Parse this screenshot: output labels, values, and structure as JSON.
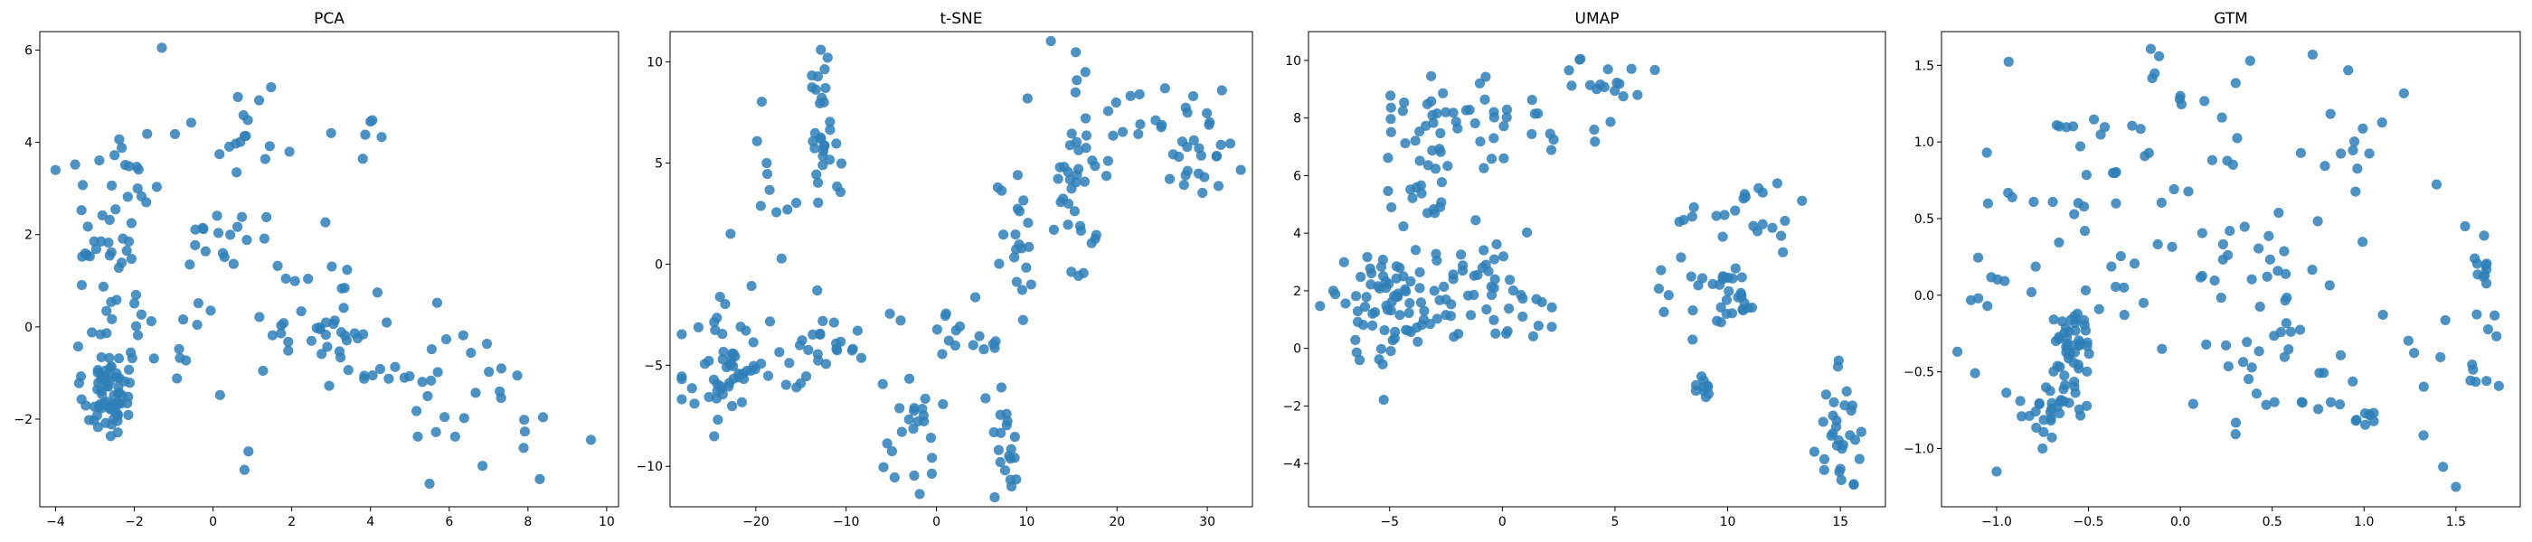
{
  "chart_data": [
    {
      "type": "scatter",
      "title": "PCA",
      "xlabel": "",
      "ylabel": "",
      "xlim": [
        -4.4,
        10.3
      ],
      "ylim": [
        -3.9,
        6.4
      ],
      "xticks": [
        -4,
        -2,
        0,
        2,
        4,
        6,
        8,
        10
      ],
      "yticks": [
        -2,
        0,
        2,
        4,
        6
      ],
      "xtick_labels": [
        "−4",
        "−2",
        "0",
        "2",
        "4",
        "6",
        "8",
        "10"
      ],
      "ytick_labels": [
        "−2",
        "0",
        "2",
        "4",
        "6"
      ],
      "grid": false,
      "color": "#2f7fb8",
      "clusters": [
        {
          "cx": -2.7,
          "cy": -1.4,
          "sx": 0.3,
          "sy": 0.5,
          "n": 70
        },
        {
          "cx": -2.6,
          "cy": 1.5,
          "sx": 0.6,
          "sy": 1.2,
          "n": 40
        },
        {
          "cx": -2.2,
          "cy": 3.4,
          "sx": 0.6,
          "sy": 0.5,
          "n": 15
        },
        {
          "cx": 0.9,
          "cy": 4.5,
          "sx": 0.6,
          "sy": 0.6,
          "n": 15
        },
        {
          "cx": 0.6,
          "cy": 1.8,
          "sx": 0.7,
          "sy": 0.6,
          "n": 20
        },
        {
          "cx": 2.2,
          "cy": 0.6,
          "sx": 0.8,
          "sy": 0.6,
          "n": 20
        },
        {
          "cx": 3.4,
          "cy": -0.3,
          "sx": 0.6,
          "sy": 0.8,
          "n": 25
        },
        {
          "cx": 5.8,
          "cy": -1.1,
          "sx": 0.8,
          "sy": 0.6,
          "n": 15
        },
        {
          "cx": 7.4,
          "cy": -1.9,
          "sx": 0.9,
          "sy": 0.7,
          "n": 15
        },
        {
          "cx": -0.7,
          "cy": -0.7,
          "sx": 0.6,
          "sy": 0.7,
          "n": 10
        },
        {
          "cx": 4.1,
          "cy": 4.1,
          "sx": 0.2,
          "sy": 0.2,
          "n": 4
        }
      ],
      "points": [
        [
          -1.3,
          6.05
        ],
        [
          -4.0,
          3.4
        ],
        [
          8.3,
          -3.3
        ],
        [
          9.6,
          -2.45
        ],
        [
          5.5,
          -3.4
        ],
        [
          0.8,
          -3.1
        ],
        [
          0.9,
          -2.7
        ],
        [
          4.0,
          4.45
        ],
        [
          3.0,
          4.2
        ]
      ]
    },
    {
      "type": "scatter",
      "title": "t-SNE",
      "xlabel": "",
      "ylabel": "",
      "xlim": [
        -29.5,
        35.0
      ],
      "ylim": [
        -12.0,
        11.5
      ],
      "xticks": [
        -20,
        -10,
        0,
        10,
        20,
        30
      ],
      "yticks": [
        -10,
        -5,
        0,
        5,
        10
      ],
      "xtick_labels": [
        "−20",
        "−10",
        "0",
        "10",
        "20",
        "30"
      ],
      "ytick_labels": [
        "−10",
        "−5",
        "0",
        "5",
        "10"
      ],
      "grid": false,
      "color": "#2f7fb8",
      "clusters": [
        {
          "cx": -12.5,
          "cy": 7.0,
          "sx": 0.9,
          "sy": 2.0,
          "n": 30
        },
        {
          "cx": -23.0,
          "cy": -5.0,
          "sx": 2.2,
          "sy": 2.0,
          "n": 55
        },
        {
          "cx": -13.0,
          "cy": -4.5,
          "sx": 3.5,
          "sy": 0.9,
          "n": 25
        },
        {
          "cx": -3.0,
          "cy": -7.5,
          "sx": 2.0,
          "sy": 1.8,
          "n": 25
        },
        {
          "cx": 4.0,
          "cy": -3.0,
          "sx": 2.5,
          "sy": 1.2,
          "n": 15
        },
        {
          "cx": 8.0,
          "cy": -9.0,
          "sx": 1.0,
          "sy": 1.5,
          "n": 20
        },
        {
          "cx": 9.0,
          "cy": 0.0,
          "sx": 1.2,
          "sy": 2.0,
          "n": 20
        },
        {
          "cx": 15.5,
          "cy": 5.0,
          "sx": 2.0,
          "sy": 3.0,
          "n": 40
        },
        {
          "cx": 29.0,
          "cy": 6.0,
          "sx": 2.0,
          "sy": 1.5,
          "n": 30
        },
        {
          "cx": 21.0,
          "cy": 7.0,
          "sx": 1.5,
          "sy": 1.0,
          "n": 8
        },
        {
          "cx": -18.0,
          "cy": 3.5,
          "sx": 2.0,
          "sy": 1.5,
          "n": 8
        }
      ],
      "points": [
        [
          -12.8,
          10.6
        ],
        [
          -16.5,
          2.7
        ],
        [
          -18.8,
          5.0
        ],
        [
          -13.2,
          -1.3
        ],
        [
          22.5,
          8.4
        ],
        [
          16.5,
          9.5
        ],
        [
          -22.8,
          1.5
        ]
      ]
    },
    {
      "type": "scatter",
      "title": "UMAP",
      "xlabel": "",
      "ylabel": "",
      "xlim": [
        -8.6,
        17.0
      ],
      "ylim": [
        -5.5,
        11.0
      ],
      "xticks": [
        -5,
        0,
        5,
        10,
        15
      ],
      "yticks": [
        -4,
        -2,
        0,
        2,
        4,
        6,
        8,
        10
      ],
      "xtick_labels": [
        "−5",
        "0",
        "5",
        "10",
        "15"
      ],
      "ytick_labels": [
        "−4",
        "−2",
        "0",
        "2",
        "4",
        "6",
        "8",
        "10"
      ],
      "grid": false,
      "color": "#2f7fb8",
      "clusters": [
        {
          "cx": -5.0,
          "cy": 1.5,
          "sx": 1.3,
          "sy": 1.0,
          "n": 70
        },
        {
          "cx": -1.0,
          "cy": 2.0,
          "sx": 1.5,
          "sy": 0.8,
          "n": 50
        },
        {
          "cx": -3.5,
          "cy": 6.0,
          "sx": 1.0,
          "sy": 1.3,
          "n": 30
        },
        {
          "cx": -2.5,
          "cy": 8.5,
          "sx": 1.5,
          "sy": 0.6,
          "n": 20
        },
        {
          "cx": 1.5,
          "cy": 7.5,
          "sx": 1.5,
          "sy": 0.5,
          "n": 20
        },
        {
          "cx": 4.5,
          "cy": 9.5,
          "sx": 0.8,
          "sy": 0.6,
          "n": 15
        },
        {
          "cx": 9.0,
          "cy": 2.5,
          "sx": 1.0,
          "sy": 1.2,
          "n": 25
        },
        {
          "cx": 10.5,
          "cy": 2.0,
          "sx": 0.5,
          "sy": 0.6,
          "n": 15
        },
        {
          "cx": 11.5,
          "cy": 4.5,
          "sx": 0.8,
          "sy": 0.6,
          "n": 15
        },
        {
          "cx": 9.0,
          "cy": -1.2,
          "sx": 0.3,
          "sy": 0.3,
          "n": 10
        },
        {
          "cx": 15.0,
          "cy": -3.0,
          "sx": 0.5,
          "sy": 1.0,
          "n": 30
        }
      ],
      "points": [
        [
          -7.5,
          2.0
        ],
        [
          -3.0,
          4.7
        ],
        [
          8.5,
          4.9
        ],
        [
          9.5,
          4.6
        ],
        [
          6.0,
          8.8
        ]
      ]
    },
    {
      "type": "scatter",
      "title": "GTM",
      "xlabel": "",
      "ylabel": "",
      "xlim": [
        -1.3,
        1.85
      ],
      "ylim": [
        -1.38,
        1.72
      ],
      "xticks": [
        -1.0,
        -0.5,
        0.0,
        0.5,
        1.0,
        1.5
      ],
      "yticks": [
        -1.0,
        -0.5,
        0.0,
        0.5,
        1.0,
        1.5
      ],
      "xtick_labels": [
        "−1.0",
        "−0.5",
        "0.0",
        "0.5",
        "1.0",
        "1.5"
      ],
      "ytick_labels": [
        "−1.0",
        "−0.5",
        "0.0",
        "0.5",
        "1.0",
        "1.5"
      ],
      "grid": false,
      "color": "#2f7fb8",
      "clusters": [
        {
          "cx": -0.6,
          "cy": -0.35,
          "sx": 0.06,
          "sy": 0.15,
          "n": 45
        },
        {
          "cx": -0.7,
          "cy": -0.75,
          "sx": 0.12,
          "sy": 0.1,
          "n": 25
        },
        {
          "cx": -0.55,
          "cy": 0.3,
          "sx": 0.3,
          "sy": 0.5,
          "n": 40
        },
        {
          "cx": -0.3,
          "cy": 1.0,
          "sx": 0.4,
          "sy": 0.35,
          "n": 25
        },
        {
          "cx": 0.3,
          "cy": 0.3,
          "sx": 0.3,
          "sy": 0.35,
          "n": 20
        },
        {
          "cx": 0.7,
          "cy": 0.0,
          "sx": 0.35,
          "sy": 0.4,
          "n": 35
        },
        {
          "cx": 0.5,
          "cy": -0.6,
          "sx": 0.3,
          "sy": 0.25,
          "n": 20
        },
        {
          "cx": 1.0,
          "cy": -0.8,
          "sx": 0.05,
          "sy": 0.03,
          "n": 8
        },
        {
          "cx": 1.65,
          "cy": 0.0,
          "sx": 0.05,
          "sy": 0.2,
          "n": 12
        },
        {
          "cx": 1.65,
          "cy": -0.55,
          "sx": 0.04,
          "sy": 0.08,
          "n": 6
        },
        {
          "cx": 1.05,
          "cy": 1.3,
          "sx": 0.12,
          "sy": 0.2,
          "n": 8
        }
      ],
      "points": [
        [
          -1.1,
          -0.02
        ],
        [
          -1.05,
          -0.07
        ],
        [
          -1.0,
          -1.15
        ],
        [
          -0.75,
          -1.0
        ],
        [
          1.5,
          -1.25
        ],
        [
          1.43,
          -1.12
        ],
        [
          0.38,
          1.53
        ],
        [
          0.72,
          1.57
        ],
        [
          0.0,
          1.3
        ],
        [
          -0.1,
          -0.35
        ],
        [
          -0.2,
          -0.05
        ],
        [
          1.55,
          0.45
        ]
      ]
    }
  ]
}
